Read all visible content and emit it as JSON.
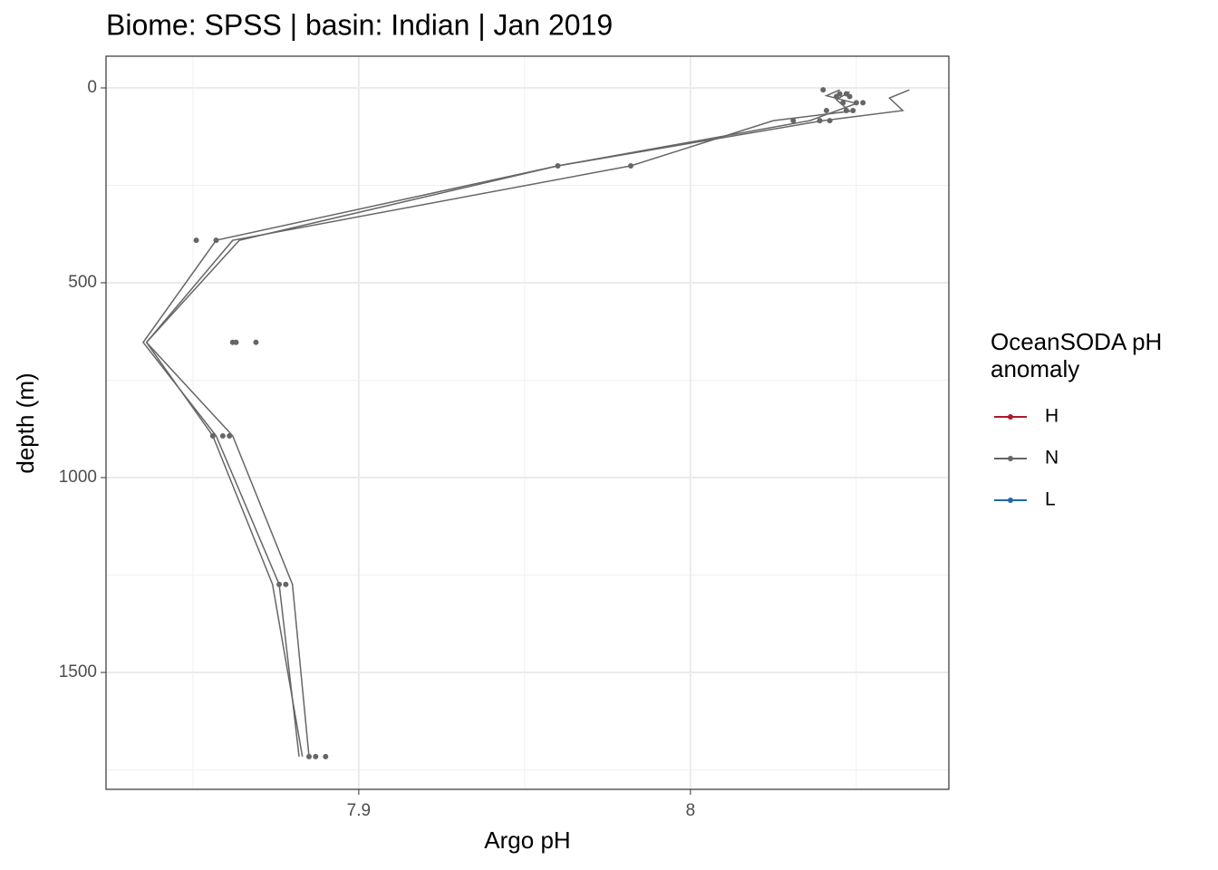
{
  "chart_data": {
    "type": "line",
    "title": "Biome: SPSS | basin: Indian  | Jan 2019",
    "x_label": "Argo pH",
    "y_label": "depth (m)",
    "xlim": [
      7.8238,
      8.0779
    ],
    "ylim": [
      1800,
      -81.4
    ],
    "xticks": [
      7.9,
      8.0
    ],
    "yticks": [
      0,
      500,
      1000,
      1500
    ],
    "x_minor_ticks": [
      7.85,
      7.95,
      8.05
    ],
    "y_minor_ticks": [
      250,
      750,
      1250,
      1750
    ],
    "grid": true,
    "legend_title": "OceanSODA pH anomaly",
    "legend": [
      {
        "name": "H",
        "color": "#b2182b"
      },
      {
        "name": "N",
        "color": "#666666"
      },
      {
        "name": "L",
        "color": "#2166ac"
      }
    ],
    "profile_color": "#666666",
    "profiles": [
      {
        "x": [
          8.066,
          8.06,
          8.064,
          8.04,
          7.96,
          7.864,
          7.836,
          7.862,
          7.88,
          7.885
        ],
        "y": [
          5,
          26,
          58,
          84,
          200,
          391,
          653,
          893,
          1274,
          1716
        ]
      },
      {
        "x": [
          8.045,
          8.041,
          8.05,
          8.036,
          7.96,
          7.857,
          7.835,
          7.857,
          7.876,
          7.882
        ],
        "y": [
          5,
          20,
          40,
          84,
          200,
          391,
          653,
          893,
          1274,
          1716
        ]
      },
      {
        "x": [
          8.048,
          8.044,
          8.048,
          8.025,
          7.982,
          7.862,
          7.836,
          7.856,
          7.874,
          7.883
        ],
        "y": [
          10,
          30,
          60,
          84,
          200,
          391,
          653,
          893,
          1274,
          1716
        ]
      }
    ],
    "points": {
      "x": [
        8.04,
        8.045,
        8.047,
        8.044,
        8.048,
        8.05,
        8.052,
        8.046,
        8.041,
        8.047,
        8.049,
        8.031,
        8.039,
        8.042,
        7.96,
        7.982,
        7.851,
        7.857,
        7.862,
        7.863,
        7.869,
        7.856,
        7.859,
        7.861,
        7.876,
        7.878,
        7.885,
        7.887,
        7.89
      ],
      "y": [
        5,
        15,
        15,
        22,
        22,
        38,
        38,
        38,
        58,
        58,
        58,
        84,
        84,
        84,
        200,
        200,
        391,
        391,
        653,
        653,
        653,
        893,
        893,
        893,
        1274,
        1274,
        1716,
        1716,
        1716
      ]
    }
  }
}
